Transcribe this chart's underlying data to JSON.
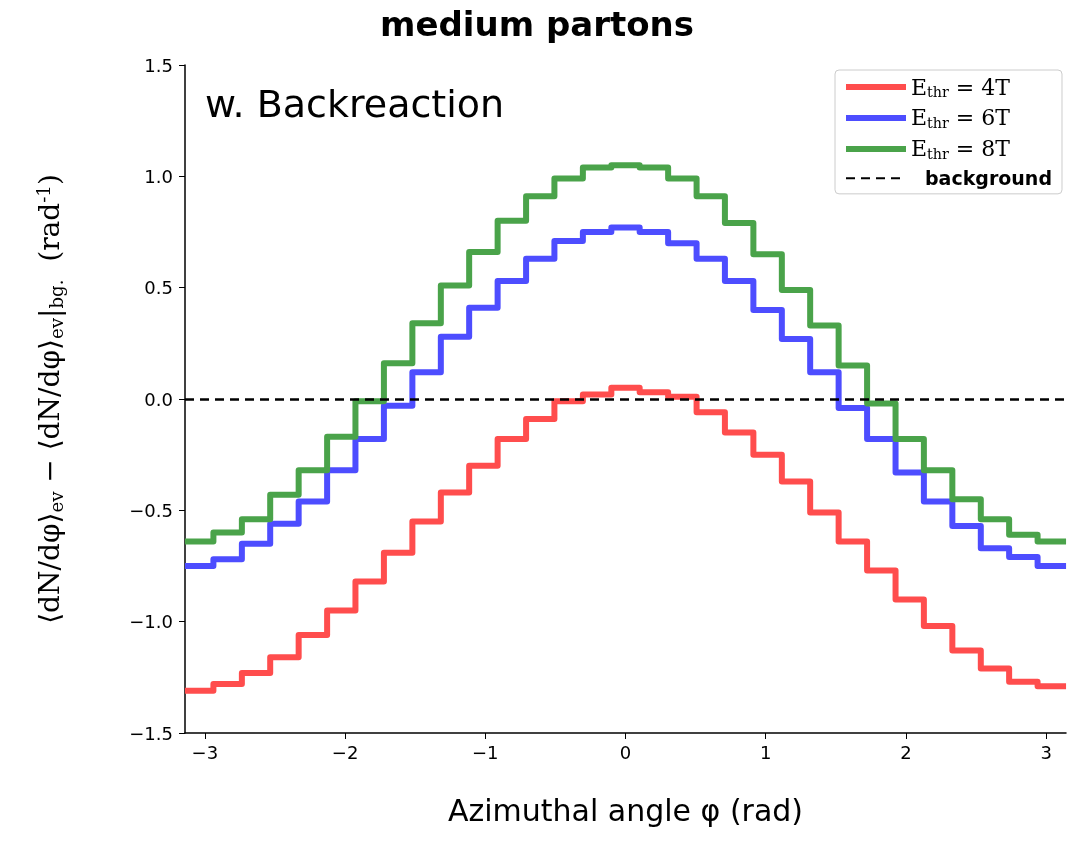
{
  "chart_data": {
    "type": "histogram",
    "title": "medium partons",
    "xlabel": "Azimuthal angle φ (rad)",
    "ylabel": "⟨dN/dφ⟩$_{ev}$ − ⟨dN/dφ⟩$_{ev}$|$_{bg.}$  (rad$^{-1}$)",
    "annotations": [
      "w. Backreaction"
    ],
    "bins": [
      -3.142,
      -2.939,
      -2.736,
      -2.534,
      -2.331,
      -2.128,
      -1.926,
      -1.723,
      -1.52,
      -1.317,
      -1.115,
      -0.912,
      -0.709,
      -0.507,
      -0.304,
      -0.101,
      0.101,
      0.304,
      0.507,
      0.709,
      0.912,
      1.115,
      1.317,
      1.52,
      1.723,
      1.926,
      2.128,
      2.331,
      2.534,
      2.736,
      2.939,
      3.142
    ],
    "series": [
      {
        "name": "E$_{thr}$ = 4T",
        "color": "#ff4d4d",
        "values": [
          -1.31,
          -1.28,
          -1.23,
          -1.16,
          -1.06,
          -0.95,
          -0.82,
          -0.69,
          -0.55,
          -0.42,
          -0.3,
          -0.18,
          -0.09,
          -0.01,
          0.02,
          0.05,
          0.03,
          0.01,
          -0.06,
          -0.15,
          -0.25,
          -0.37,
          -0.51,
          -0.64,
          -0.77,
          -0.9,
          -1.02,
          -1.13,
          -1.21,
          -1.27,
          -1.29
        ]
      },
      {
        "name": "E$_{thr}$ = 6T",
        "color": "#4d4dff",
        "values": [
          -0.75,
          -0.72,
          -0.65,
          -0.56,
          -0.46,
          -0.32,
          -0.18,
          -0.03,
          0.12,
          0.28,
          0.41,
          0.53,
          0.63,
          0.71,
          0.75,
          0.77,
          0.75,
          0.7,
          0.63,
          0.53,
          0.4,
          0.27,
          0.12,
          -0.04,
          -0.18,
          -0.33,
          -0.46,
          -0.57,
          -0.67,
          -0.71,
          -0.75
        ]
      },
      {
        "name": "E$_{thr}$ = 8T",
        "color": "#4aa34a",
        "values": [
          -0.64,
          -0.6,
          -0.54,
          -0.43,
          -0.32,
          -0.17,
          -0.01,
          0.16,
          0.34,
          0.51,
          0.66,
          0.8,
          0.91,
          0.99,
          1.04,
          1.05,
          1.04,
          0.99,
          0.91,
          0.79,
          0.65,
          0.49,
          0.33,
          0.15,
          -0.02,
          -0.18,
          -0.32,
          -0.45,
          -0.54,
          -0.61,
          -0.64
        ]
      }
    ],
    "ref_lines": [
      {
        "axis": "y",
        "value": 0,
        "label": "background",
        "color": "#000000",
        "line_style": "dashed"
      }
    ],
    "xlim": [
      -3.1416,
      3.1416
    ],
    "ylim": [
      -1.5,
      1.5
    ],
    "xticks": [
      {
        "value": -3,
        "label": "−3"
      },
      {
        "value": -2,
        "label": "−2"
      },
      {
        "value": -1,
        "label": "−1"
      },
      0,
      1,
      2,
      3
    ],
    "yticks": [
      {
        "value": -1.5,
        "label": "−1.5"
      },
      {
        "value": -1,
        "label": "−1.0"
      },
      {
        "value": -0.5,
        "label": "−0.5"
      },
      {
        "value": 0,
        "label": "0.0"
      },
      0.5,
      {
        "value": 1,
        "label": "1.0"
      },
      1.5
    ],
    "grid": false,
    "legend": "top right"
  }
}
